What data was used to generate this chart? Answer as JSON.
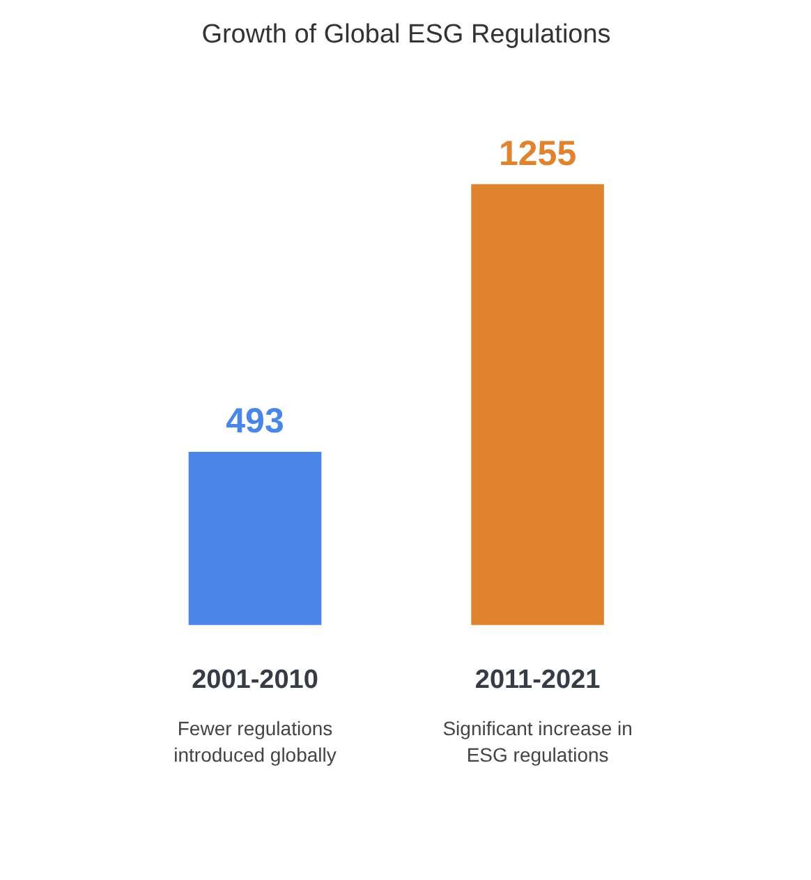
{
  "chart_data": {
    "type": "bar",
    "title": "Growth of Global ESG Regulations",
    "categories": [
      "2001-2010",
      "2011-2021"
    ],
    "values": [
      493,
      1255
    ],
    "colors": [
      "#4a86e8",
      "#e0832f"
    ],
    "data_labels": true,
    "tick_labels": "x",
    "annotations": [
      "Fewer regulations introduced globally",
      "Significant increase in ESG regulations"
    ]
  }
}
